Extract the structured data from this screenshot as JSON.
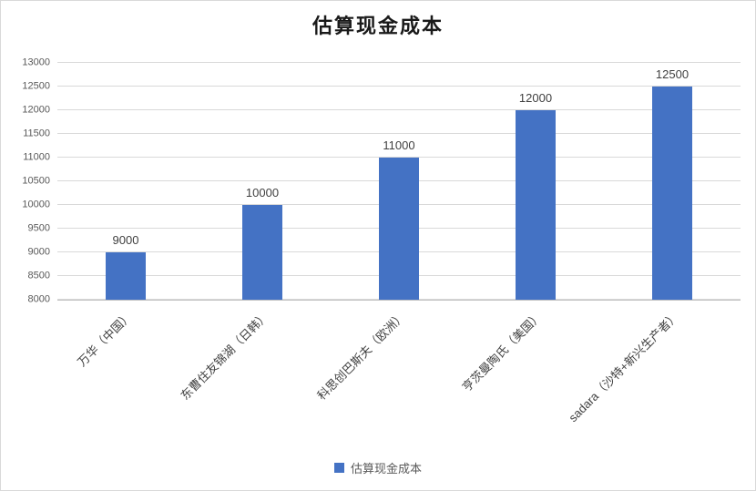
{
  "chart_data": {
    "type": "bar",
    "title": "估算现金成本",
    "categories": [
      "万华（中国）",
      "东曹住友锦湖（日韩）",
      "科思创巴斯夫（欧洲）",
      "亨茨曼陶氏（美国）",
      "sadara（沙特+新兴生产者）"
    ],
    "values": [
      9000,
      10000,
      11000,
      12000,
      12500
    ],
    "series_name": "估算现金成本",
    "ylim": [
      8000,
      13000
    ],
    "ytick_step": 500,
    "ytick_labels": [
      "8000",
      "8500",
      "9000",
      "9500",
      "10000",
      "10500",
      "11000",
      "11500",
      "12000",
      "12500",
      "13000"
    ],
    "data_labels": [
      "9000",
      "10000",
      "11000",
      "12000",
      "12500"
    ],
    "legend_position": "bottom",
    "grid": "horizontal",
    "colors": {
      "bar": "#4472c4",
      "gridline": "#d9d9d9",
      "axis_line": "#bfbfbf",
      "label_text": "#404040",
      "tick_text": "#595959",
      "title_text": "#1a1a1a"
    }
  }
}
